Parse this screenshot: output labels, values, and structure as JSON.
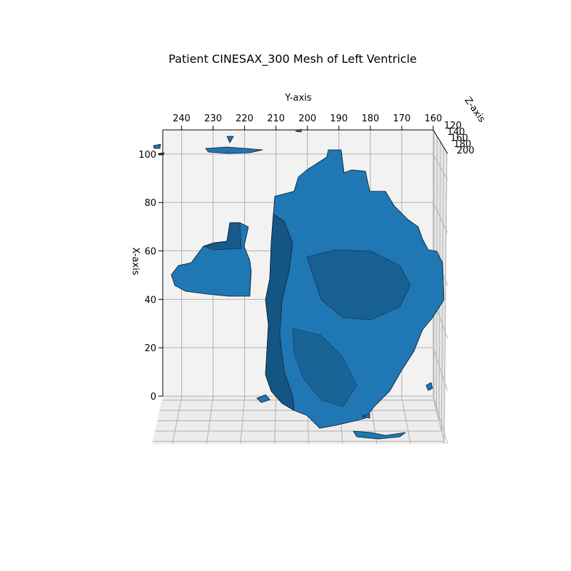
{
  "chart_data": {
    "type": "3d-mesh",
    "title": "Patient CINESAX_300 Mesh of Left Ventricle",
    "xlabel": "X-axis",
    "ylabel": "Y-axis",
    "zlabel": "Z-axis",
    "x_ticks": [
      0,
      20,
      40,
      60,
      80,
      100
    ],
    "y_ticks": [
      240,
      230,
      220,
      210,
      200,
      190,
      180,
      170,
      160
    ],
    "z_ticks": [
      120,
      140,
      160,
      180,
      200
    ],
    "x_range": [
      0,
      110
    ],
    "y_range": [
      246,
      160
    ],
    "z_range": [
      115,
      205
    ],
    "mesh_color": "#1f77b4",
    "edge_color": "#000000",
    "grid": true
  }
}
